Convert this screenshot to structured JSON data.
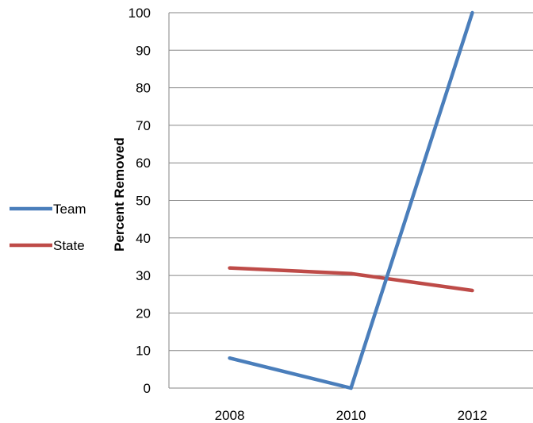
{
  "chart_data": {
    "type": "line",
    "title": "",
    "xlabel": "",
    "ylabel": "Percent Removed",
    "categories": [
      "2008",
      "2010",
      "2012"
    ],
    "ylim": [
      0,
      100
    ],
    "yticks": [
      0,
      10,
      20,
      30,
      40,
      50,
      60,
      70,
      80,
      90,
      100
    ],
    "grid": "horizontal",
    "legend_position": "left",
    "series": [
      {
        "name": "Team",
        "color": "#4a7ebb",
        "values": [
          8,
          0,
          100
        ]
      },
      {
        "name": "State",
        "color": "#be4b48",
        "values": [
          32,
          30.5,
          26
        ]
      }
    ]
  }
}
